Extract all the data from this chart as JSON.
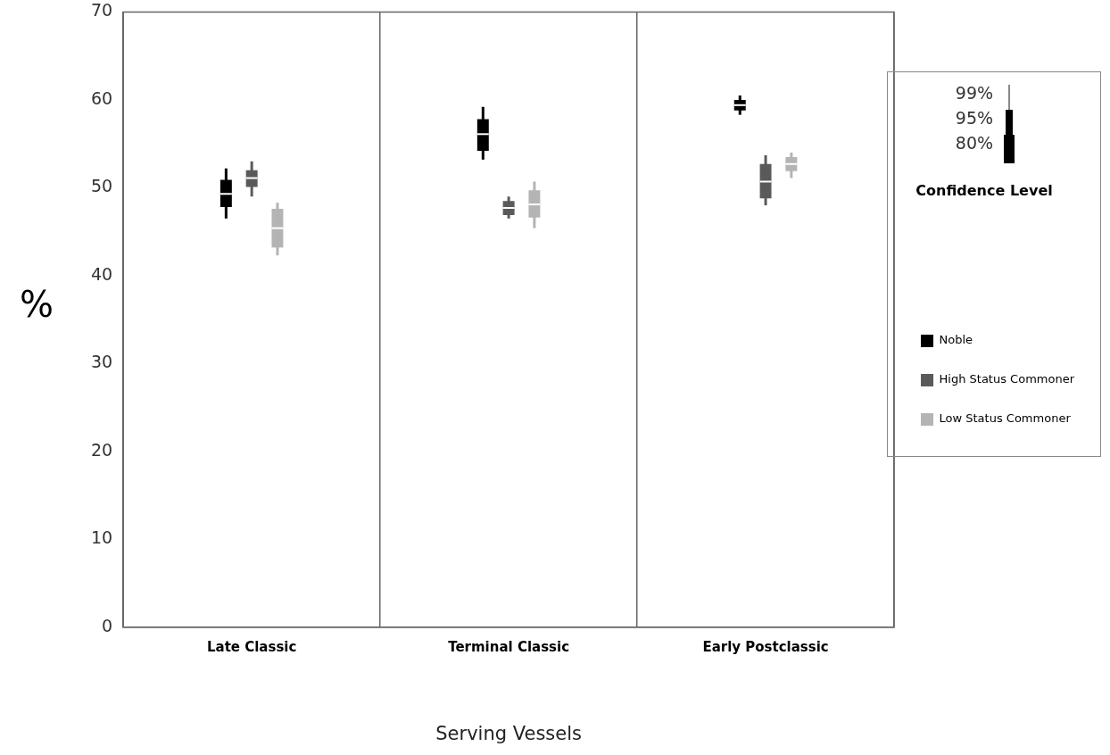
{
  "chart_data": {
    "type": "box",
    "xlabel": "Serving Vessels",
    "ylabel": "%",
    "categories": [
      "Late Classic",
      "Terminal Classic",
      "Early Postclassic"
    ],
    "ylim": [
      0,
      70
    ],
    "yticks": [
      0,
      10,
      20,
      30,
      40,
      50,
      60,
      70
    ],
    "grid": "x",
    "legend": "right",
    "annotations": [
      "99%",
      "95%",
      "80%",
      "Confidence Level"
    ],
    "series": [
      {
        "name": "Noble",
        "color": "#000000",
        "boxes": [
          {
            "low": 46.5,
            "q1": 47.8,
            "median": 49.3,
            "q3": 50.9,
            "high": 52.2
          },
          {
            "low": 53.2,
            "q1": 54.2,
            "median": 56.1,
            "q3": 57.8,
            "high": 59.2
          },
          {
            "low": 58.3,
            "q1": 58.8,
            "median": 59.4,
            "q3": 60.0,
            "high": 60.5
          }
        ]
      },
      {
        "name": "High Status Commoner",
        "color": "#5a5a5a",
        "boxes": [
          {
            "low": 49.0,
            "q1": 50.1,
            "median": 51.1,
            "q3": 52.0,
            "high": 53.0
          },
          {
            "low": 46.5,
            "q1": 46.9,
            "median": 47.7,
            "q3": 48.5,
            "high": 49.0
          },
          {
            "low": 48.0,
            "q1": 48.8,
            "median": 50.7,
            "q3": 52.7,
            "high": 53.7
          }
        ]
      },
      {
        "name": "Low Status Commoner",
        "color": "#b4b4b4",
        "boxes": [
          {
            "low": 42.3,
            "q1": 43.2,
            "median": 45.4,
            "q3": 47.6,
            "high": 48.3
          },
          {
            "low": 45.4,
            "q1": 46.6,
            "median": 48.1,
            "q3": 49.7,
            "high": 50.7
          },
          {
            "low": 51.1,
            "q1": 51.9,
            "median": 52.7,
            "q3": 53.5,
            "high": 54.0
          }
        ]
      }
    ]
  }
}
